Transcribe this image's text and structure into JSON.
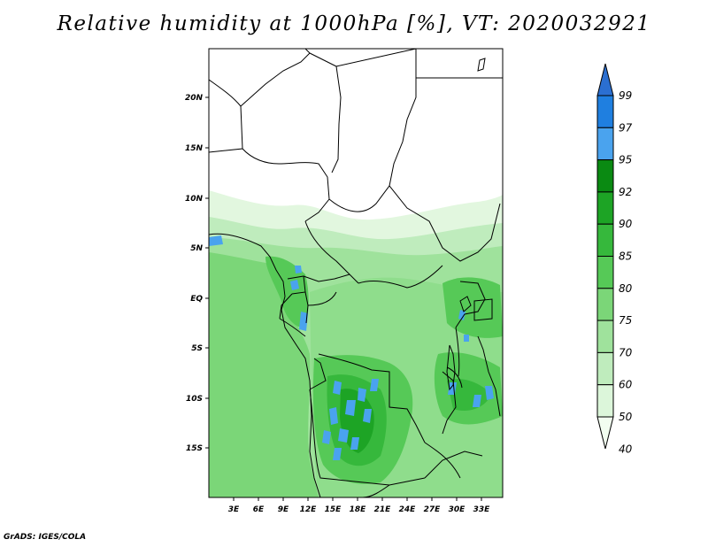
{
  "title": "Relative humidity at 1000hPa [%], VT: 2020032921",
  "credit": "GrADS: IGES/COLA",
  "map": {
    "lat_labels": [
      "20N",
      "15N",
      "10N",
      "5N",
      "EQ",
      "5S",
      "10S",
      "15S"
    ],
    "lon_labels": [
      "3E",
      "6E",
      "9E",
      "12E",
      "15E",
      "18E",
      "21E",
      "24E",
      "27E",
      "30E",
      "33E"
    ]
  },
  "colorbar": {
    "labels": [
      "99",
      "97",
      "95",
      "92",
      "90",
      "85",
      "80",
      "75",
      "70",
      "60",
      "50",
      "40"
    ],
    "colors": [
      "#2b6fd1",
      "#1f7fe0",
      "#4aa3ee",
      "#0a8a12",
      "#1da425",
      "#36b83c",
      "#56c957",
      "#7bd678",
      "#9fe29c",
      "#bfecbd",
      "#dcf6da",
      "#f2fdf0"
    ]
  }
}
